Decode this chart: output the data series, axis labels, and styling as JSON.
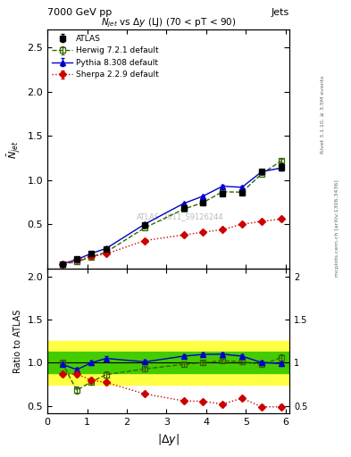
{
  "header_left": "7000 GeV pp",
  "header_right": "Jets",
  "right_label_top": "Rivet 3.1.10, ≥ 3.5M events",
  "right_label_bottom": "mcplots.cern.ch [arXiv:1306.3436]",
  "watermark": "ATLAS_2011_S9126244",
  "xlabel": "$|\\Delta y|$",
  "ylabel_main": "$\\bar{N}_{jet}$",
  "ylabel_ratio": "Ratio to ATLAS",
  "title_main": "$N_{jet}$ vs $\\Delta y$ (LJ) (70 < pT < 90)",
  "atlas_x": [
    0.37,
    0.74,
    1.11,
    1.48,
    2.45,
    3.43,
    3.92,
    4.41,
    4.9,
    5.4,
    5.89
  ],
  "atlas_y": [
    0.055,
    0.113,
    0.173,
    0.218,
    0.498,
    0.685,
    0.748,
    0.848,
    0.855,
    1.095,
    1.15
  ],
  "atlas_yerr": [
    0.005,
    0.007,
    0.008,
    0.009,
    0.013,
    0.018,
    0.018,
    0.022,
    0.022,
    0.028,
    0.038
  ],
  "herwig_x": [
    0.37,
    0.74,
    1.11,
    1.48,
    2.45,
    3.43,
    3.92,
    4.41,
    4.9,
    5.4,
    5.89
  ],
  "herwig_y": [
    0.055,
    0.077,
    0.135,
    0.188,
    0.462,
    0.672,
    0.748,
    0.869,
    0.865,
    1.073,
    1.218
  ],
  "herwig_yerr": [
    0.002,
    0.003,
    0.004,
    0.005,
    0.008,
    0.011,
    0.012,
    0.014,
    0.015,
    0.018,
    0.022
  ],
  "pythia_x": [
    0.37,
    0.74,
    1.11,
    1.48,
    2.45,
    3.43,
    3.92,
    4.41,
    4.9,
    5.4,
    5.89
  ],
  "pythia_y": [
    0.054,
    0.104,
    0.173,
    0.229,
    0.503,
    0.737,
    0.82,
    0.932,
    0.92,
    1.097,
    1.138
  ],
  "pythia_yerr": [
    0.002,
    0.003,
    0.004,
    0.005,
    0.008,
    0.011,
    0.012,
    0.014,
    0.015,
    0.018,
    0.02
  ],
  "sherpa_x": [
    0.37,
    0.74,
    1.11,
    1.48,
    2.45,
    3.43,
    3.92,
    4.41,
    4.9,
    5.4,
    5.89
  ],
  "sherpa_y": [
    0.048,
    0.098,
    0.138,
    0.168,
    0.318,
    0.382,
    0.413,
    0.441,
    0.503,
    0.535,
    0.561
  ],
  "sherpa_yerr": [
    0.002,
    0.003,
    0.004,
    0.005,
    0.006,
    0.008,
    0.009,
    0.01,
    0.012,
    0.013,
    0.015
  ],
  "ratio_herwig_x": [
    0.37,
    0.74,
    1.11,
    1.48,
    2.45,
    3.43,
    3.92,
    4.41,
    4.9,
    5.4,
    5.89
  ],
  "ratio_herwig_y": [
    1.0,
    0.68,
    0.78,
    0.862,
    0.928,
    0.981,
    1.0,
    1.025,
    1.012,
    0.98,
    1.059
  ],
  "ratio_herwig_yerr": [
    0.025,
    0.04,
    0.038,
    0.038,
    0.025,
    0.025,
    0.025,
    0.025,
    0.025,
    0.028,
    0.035
  ],
  "ratio_pythia_x": [
    0.37,
    0.74,
    1.11,
    1.48,
    2.45,
    3.43,
    3.92,
    4.41,
    4.9,
    5.4,
    5.89
  ],
  "ratio_pythia_y": [
    0.982,
    0.92,
    1.0,
    1.05,
    1.01,
    1.076,
    1.096,
    1.099,
    1.076,
    1.002,
    0.99
  ],
  "ratio_pythia_yerr": [
    0.02,
    0.025,
    0.025,
    0.03,
    0.022,
    0.022,
    0.022,
    0.022,
    0.022,
    0.022,
    0.025
  ],
  "ratio_sherpa_x": [
    0.37,
    0.74,
    1.11,
    1.48,
    2.45,
    3.43,
    3.92,
    4.41,
    4.9,
    5.4,
    5.89
  ],
  "ratio_sherpa_y": [
    0.873,
    0.867,
    0.798,
    0.771,
    0.638,
    0.558,
    0.552,
    0.52,
    0.588,
    0.489,
    0.488
  ],
  "ratio_sherpa_yerr": [
    0.022,
    0.028,
    0.028,
    0.03,
    0.02,
    0.02,
    0.02,
    0.02,
    0.022,
    0.02,
    0.025
  ],
  "band_x1": 0.0,
  "band_x2": 6.1,
  "band_yellow_ylow": 0.75,
  "band_yellow_yhigh": 1.25,
  "band_green_ylow": 0.875,
  "band_green_yhigh": 1.125,
  "ylim_main": [
    0.0,
    2.7
  ],
  "ylim_ratio": [
    0.41,
    2.09
  ],
  "xlim": [
    0.0,
    6.1
  ],
  "color_atlas": "#000000",
  "color_herwig": "#336600",
  "color_pythia": "#0000cc",
  "color_sherpa": "#cc0000",
  "color_band_yellow": "#ffff44",
  "color_band_green": "#44cc00",
  "yticks_main": [
    0.5,
    1.0,
    1.5,
    2.0,
    2.5
  ],
  "yticks_ratio": [
    0.5,
    1.0,
    1.5,
    2.0
  ],
  "xticks": [
    0,
    1,
    2,
    3,
    4,
    5,
    6
  ]
}
